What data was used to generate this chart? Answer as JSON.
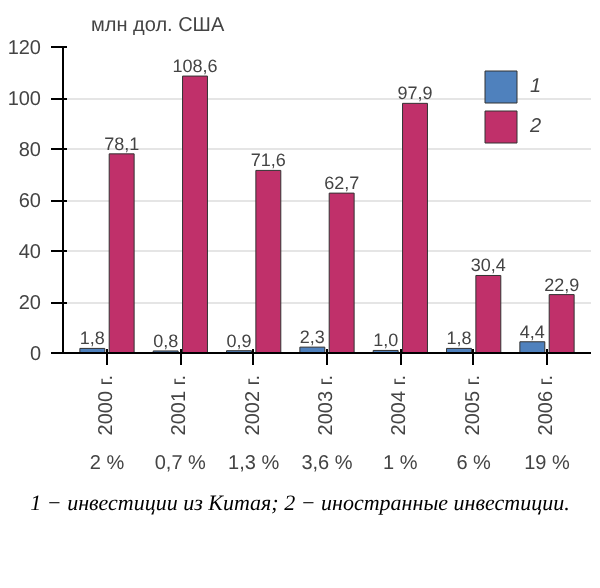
{
  "chart_data": {
    "type": "bar",
    "ylabel": "млн дол. США",
    "categories": [
      "2000 г.",
      "2001 г.",
      "2002 г.",
      "2003 г.",
      "2004 г.",
      "2005 г.",
      "2006 г."
    ],
    "series": [
      {
        "name": "1",
        "color": "#4f81bd",
        "values": [
          1.8,
          0.8,
          0.9,
          2.3,
          1.0,
          1.8,
          4.4
        ],
        "value_labels": [
          "1,8",
          "0,8",
          "0,9",
          "2,3",
          "1,0",
          "1,8",
          "4,4"
        ]
      },
      {
        "name": "2",
        "color": "#c0306a",
        "values": [
          78.1,
          108.6,
          71.6,
          62.7,
          97.9,
          30.4,
          22.9
        ],
        "value_labels": [
          "78,1",
          "108,6",
          "71,6",
          "62,7",
          "97,9",
          "30,4",
          "22,9"
        ]
      }
    ],
    "ylim": [
      0,
      120
    ],
    "yticks": [
      0,
      20,
      40,
      60,
      80,
      100,
      120
    ],
    "grid": "y",
    "legend": "top right",
    "annotations": [
      "2 %",
      "0,7 %",
      "1,3 %",
      "3,6 %",
      "1 %",
      "6 %",
      "19 %",
      "1 − инвестиции из Китая; 2 − иностранные инвестиции."
    ]
  }
}
